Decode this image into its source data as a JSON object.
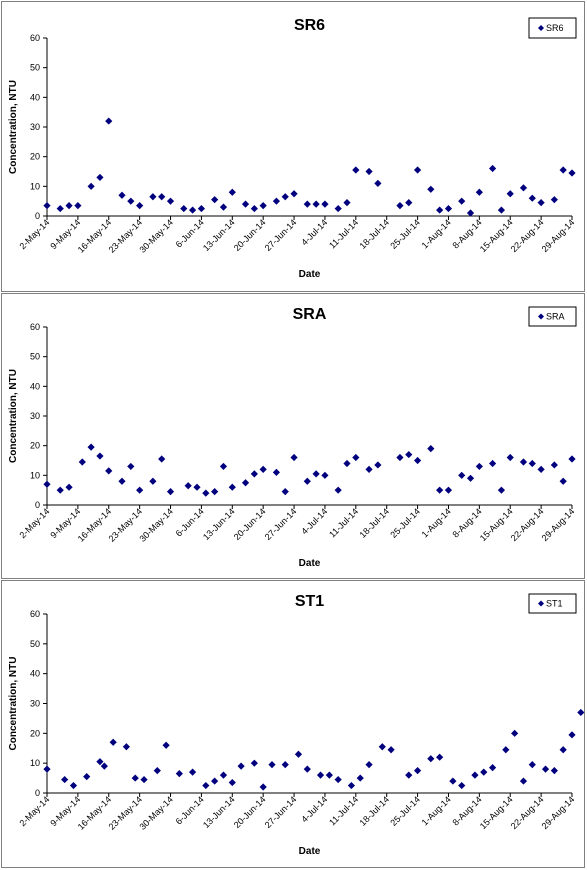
{
  "chart_data": [
    {
      "type": "scatter",
      "title": "SR6",
      "xlabel": "Date",
      "ylabel": "Concentration, NTU",
      "ylim": [
        0,
        60
      ],
      "yticks": [
        "0",
        "10",
        "20",
        "30",
        "40",
        "50",
        "60"
      ],
      "xlim": [
        "2014-05-02",
        "2014-08-29"
      ],
      "xticks": [
        "2-May-14",
        "9-May-14",
        "16-May-14",
        "23-May-14",
        "30-May-14",
        "6-Jun-14",
        "13-Jun-14",
        "20-Jun-14",
        "27-Jun-14",
        "4-Jul-14",
        "11-Jul-14",
        "18-Jul-14",
        "25-Jul-14",
        "1-Aug-14",
        "8-Aug-14",
        "15-Aug-14",
        "22-Aug-14",
        "29-Aug-14"
      ],
      "legend": "top-right",
      "grid": false,
      "marker_color": "#00007F",
      "series": [
        {
          "name": "SR6",
          "x": [
            "2014-05-02",
            "2014-05-05",
            "2014-05-07",
            "2014-05-09",
            "2014-05-12",
            "2014-05-14",
            "2014-05-16",
            "2014-05-19",
            "2014-05-21",
            "2014-05-23",
            "2014-05-26",
            "2014-05-28",
            "2014-05-30",
            "2014-06-02",
            "2014-06-04",
            "2014-06-06",
            "2014-06-09",
            "2014-06-11",
            "2014-06-13",
            "2014-06-16",
            "2014-06-18",
            "2014-06-20",
            "2014-06-23",
            "2014-06-25",
            "2014-06-27",
            "2014-06-30",
            "2014-07-02",
            "2014-07-04",
            "2014-07-07",
            "2014-07-09",
            "2014-07-11",
            "2014-07-14",
            "2014-07-16",
            "2014-07-21",
            "2014-07-23",
            "2014-07-25",
            "2014-07-28",
            "2014-07-30",
            "2014-08-01",
            "2014-08-04",
            "2014-08-06",
            "2014-08-08",
            "2014-08-11",
            "2014-08-13",
            "2014-08-15",
            "2014-08-18",
            "2014-08-20",
            "2014-08-22",
            "2014-08-25",
            "2014-08-27",
            "2014-08-29"
          ],
          "y": [
            3.5,
            2.5,
            3.5,
            3.5,
            10,
            13,
            32,
            7,
            5,
            3.5,
            6.5,
            6.5,
            5,
            2.5,
            2,
            2.5,
            5.5,
            3,
            8,
            4,
            2.5,
            3.5,
            5,
            6.5,
            7.5,
            4,
            4,
            4,
            2.5,
            4.5,
            15.5,
            15,
            11,
            3.5,
            4.5,
            15.5,
            9,
            2,
            2.5,
            5,
            1,
            8,
            16,
            2,
            7.5,
            9.5,
            6,
            4.5,
            5.5,
            15.5,
            14.5
          ]
        }
      ]
    },
    {
      "type": "scatter",
      "title": "SRA",
      "xlabel": "Date",
      "ylabel": "Concentration, NTU",
      "ylim": [
        0,
        60
      ],
      "yticks": [
        "0",
        "10",
        "20",
        "30",
        "40",
        "50",
        "60"
      ],
      "xlim": [
        "2014-05-02",
        "2014-08-29"
      ],
      "xticks": [
        "2-May-14",
        "9-May-14",
        "16-May-14",
        "23-May-14",
        "30-May-14",
        "6-Jun-14",
        "13-Jun-14",
        "20-Jun-14",
        "27-Jun-14",
        "4-Jul-14",
        "11-Jul-14",
        "18-Jul-14",
        "25-Jul-14",
        "1-Aug-14",
        "8-Aug-14",
        "15-Aug-14",
        "22-Aug-14",
        "29-Aug-14"
      ],
      "legend": "top-right",
      "grid": false,
      "marker_color": "#00007F",
      "series": [
        {
          "name": "SRA",
          "x": [
            "2014-05-02",
            "2014-05-05",
            "2014-05-07",
            "2014-05-10",
            "2014-05-12",
            "2014-05-14",
            "2014-05-16",
            "2014-05-19",
            "2014-05-21",
            "2014-05-23",
            "2014-05-26",
            "2014-05-28",
            "2014-05-30",
            "2014-06-03",
            "2014-06-05",
            "2014-06-07",
            "2014-06-09",
            "2014-06-11",
            "2014-06-13",
            "2014-06-16",
            "2014-06-18",
            "2014-06-20",
            "2014-06-23",
            "2014-06-25",
            "2014-06-27",
            "2014-06-30",
            "2014-07-02",
            "2014-07-04",
            "2014-07-07",
            "2014-07-09",
            "2014-07-11",
            "2014-07-14",
            "2014-07-16",
            "2014-07-21",
            "2014-07-23",
            "2014-07-25",
            "2014-07-28",
            "2014-07-30",
            "2014-08-01",
            "2014-08-04",
            "2014-08-06",
            "2014-08-08",
            "2014-08-11",
            "2014-08-13",
            "2014-08-15",
            "2014-08-18",
            "2014-08-20",
            "2014-08-22",
            "2014-08-25",
            "2014-08-27",
            "2014-08-29"
          ],
          "y": [
            7,
            5,
            6,
            14.5,
            19.5,
            16.5,
            11.5,
            8,
            13,
            5,
            8,
            15.5,
            4.5,
            6.5,
            6,
            4,
            4.5,
            13,
            6,
            7.5,
            10.5,
            12,
            11,
            4.5,
            16,
            8,
            10.5,
            10,
            5,
            14,
            16,
            12,
            13.5,
            16,
            17,
            15,
            19,
            5,
            5,
            10,
            9,
            13,
            14,
            5,
            16,
            14.5,
            14,
            12,
            13.5,
            8,
            15.5
          ]
        }
      ]
    },
    {
      "type": "scatter",
      "title": "ST1",
      "xlabel": "Date",
      "ylabel": "Concentration, NTU",
      "ylim": [
        0,
        60
      ],
      "yticks": [
        "0",
        "10",
        "20",
        "30",
        "40",
        "50",
        "60"
      ],
      "xlim": [
        "2014-05-02",
        "2014-08-29"
      ],
      "xticks": [
        "2-May-14",
        "9-May-14",
        "16-May-14",
        "23-May-14",
        "30-May-14",
        "6-Jun-14",
        "13-Jun-14",
        "20-Jun-14",
        "27-Jun-14",
        "4-Jul-14",
        "11-Jul-14",
        "18-Jul-14",
        "25-Jul-14",
        "1-Aug-14",
        "8-Aug-14",
        "15-Aug-14",
        "22-Aug-14",
        "29-Aug-14"
      ],
      "legend": "top-right",
      "grid": false,
      "marker_color": "#00007F",
      "series": [
        {
          "name": "ST1",
          "x": [
            "2014-05-02",
            "2014-05-06",
            "2014-05-08",
            "2014-05-11",
            "2014-05-14",
            "2014-05-15",
            "2014-05-17",
            "2014-05-20",
            "2014-05-22",
            "2014-05-24",
            "2014-05-27",
            "2014-05-29",
            "2014-06-01",
            "2014-06-04",
            "2014-06-07",
            "2014-06-09",
            "2014-06-11",
            "2014-06-13",
            "2014-06-15",
            "2014-06-18",
            "2014-06-20",
            "2014-06-22",
            "2014-06-25",
            "2014-06-28",
            "2014-06-30",
            "2014-07-03",
            "2014-07-05",
            "2014-07-07",
            "2014-07-10",
            "2014-07-12",
            "2014-07-14",
            "2014-07-17",
            "2014-07-19",
            "2014-07-23",
            "2014-07-25",
            "2014-07-28",
            "2014-07-30",
            "2014-08-02",
            "2014-08-04",
            "2014-08-07",
            "2014-08-09",
            "2014-08-11",
            "2014-08-14",
            "2014-08-16",
            "2014-08-18",
            "2014-08-20",
            "2014-08-23",
            "2014-08-25",
            "2014-08-27",
            "2014-08-29",
            "2014-08-31"
          ],
          "y": [
            8,
            4.5,
            2.5,
            5.5,
            10.5,
            9,
            17,
            15.5,
            5,
            4.5,
            7.5,
            16,
            6.5,
            7,
            2.5,
            4,
            6,
            3.5,
            9,
            10,
            2,
            9.5,
            9.5,
            13,
            8,
            6,
            6,
            4.5,
            2.5,
            5,
            9.5,
            15.5,
            14.5,
            6,
            7.5,
            11.5,
            12,
            4,
            2.5,
            6,
            7,
            8.5,
            14.5,
            20,
            4,
            9.5,
            8,
            7.5,
            14.5,
            19.5,
            27
          ]
        }
      ]
    }
  ]
}
